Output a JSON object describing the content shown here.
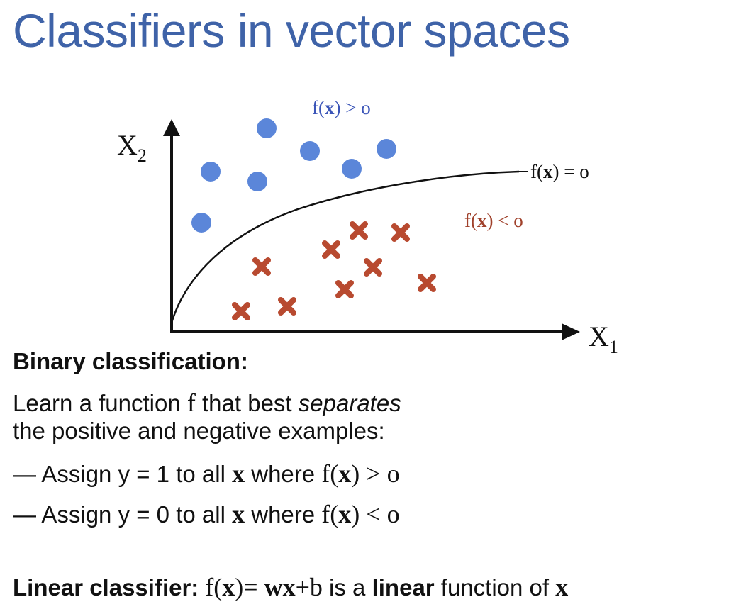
{
  "title": "Classifiers in vector spaces",
  "diagram": {
    "axis_x_label": "X",
    "axis_x_sub": "1",
    "axis_y_label": "X",
    "axis_y_sub": "2",
    "positive_region_label": {
      "pre": "f(",
      "var": "x",
      "post": ") > o"
    },
    "boundary_label": {
      "pre": "f(",
      "var": "x",
      "post": ") = o"
    },
    "negative_region_label": {
      "pre": "f(",
      "var": "x",
      "post": ") < o"
    },
    "colors": {
      "positive": "#5b86d9",
      "negative": "#b84a30",
      "positive_text": "#3b55b8",
      "negative_text": "#a0412b",
      "axis": "#111111"
    }
  },
  "binary": {
    "heading": "Binary classification:",
    "line1_pre": "Learn a function ",
    "line1_f": "f",
    "line1_mid": " that best ",
    "line1_italic": "separates",
    "line2": "the positive and negative examples:",
    "bullet1": {
      "dash": "—",
      "pre": " Assign y = 1 to all ",
      "x": "x",
      "mid": " where ",
      "f_pre": "f(",
      "f_x": "x",
      "f_post": ") > o"
    },
    "bullet2": {
      "dash": "—",
      "pre": " Assign y = 0 to all ",
      "x": "x",
      "mid": " where ",
      "f_pre": "f(",
      "f_x": "x",
      "f_post": ") < o"
    }
  },
  "linear": {
    "heading": "Linear classifier:",
    "f_pre": " f(",
    "f_x": "x",
    "f_post": ")= ",
    "w": "wx",
    "plus_b": "+b",
    "is_a": " is a ",
    "linear_word": "linear",
    "function_of": " function of ",
    "x": "x"
  }
}
